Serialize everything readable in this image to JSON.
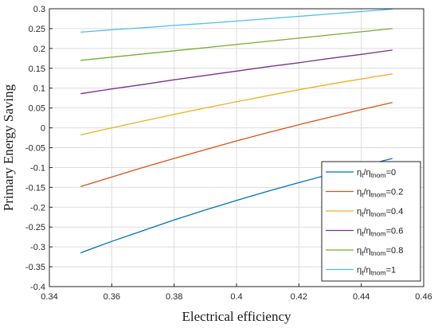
{
  "chart_data": {
    "type": "line",
    "xlabel": "Electrical efficiency",
    "ylabel": "Primary Energy Saving",
    "xlim": [
      0.34,
      0.46
    ],
    "ylim": [
      -0.4,
      0.3
    ],
    "x_ticks": [
      0.34,
      0.36,
      0.38,
      0.4,
      0.42,
      0.44,
      0.46
    ],
    "x_tick_labels": [
      "0.34",
      "0.36",
      "0.38",
      "0.4",
      "0.42",
      "0.44",
      "0.46"
    ],
    "y_ticks": [
      -0.4,
      -0.35,
      -0.3,
      -0.25,
      -0.2,
      -0.15,
      -0.1,
      -0.05,
      0,
      0.05,
      0.1,
      0.15,
      0.2,
      0.25,
      0.3
    ],
    "y_tick_labels": [
      "-0.4",
      "-0.35",
      "-0.3",
      "-0.25",
      "-0.2",
      "-0.15",
      "-0.1",
      "-0.05",
      "0",
      "0.05",
      "0.1",
      "0.15",
      "0.2",
      "0.25",
      "0.3"
    ],
    "grid": true,
    "legend_position": "bottom-right",
    "series": [
      {
        "name": "ηt/ηtnom=0",
        "label_parts": [
          "η",
          "t",
          "/η",
          "tnom",
          "=0"
        ],
        "color": "#0072BD",
        "x": [
          0.35,
          0.36,
          0.37,
          0.38,
          0.39,
          0.4,
          0.41,
          0.42,
          0.43,
          0.44,
          0.45
        ],
        "y": [
          -0.315,
          -0.286,
          -0.259,
          -0.232,
          -0.207,
          -0.183,
          -0.16,
          -0.138,
          -0.117,
          -0.097,
          -0.077
        ]
      },
      {
        "name": "ηt/ηtnom=0.2",
        "label_parts": [
          "η",
          "t",
          "/η",
          "tnom",
          "=0.2"
        ],
        "color": "#D95319",
        "x": [
          0.35,
          0.36,
          0.37,
          0.38,
          0.39,
          0.4,
          0.41,
          0.42,
          0.43,
          0.44,
          0.45
        ],
        "y": [
          -0.148,
          -0.124,
          -0.1,
          -0.077,
          -0.055,
          -0.033,
          -0.012,
          0.008,
          0.027,
          0.046,
          0.064
        ]
      },
      {
        "name": "ηt/ηtnom=0.4",
        "label_parts": [
          "η",
          "t",
          "/η",
          "tnom",
          "=0.4"
        ],
        "color": "#EDB120",
        "x": [
          0.35,
          0.36,
          0.37,
          0.38,
          0.39,
          0.4,
          0.41,
          0.42,
          0.43,
          0.44,
          0.45
        ],
        "y": [
          -0.018,
          0.0,
          0.017,
          0.034,
          0.05,
          0.066,
          0.081,
          0.096,
          0.11,
          0.123,
          0.136
        ]
      },
      {
        "name": "ηt/ηtnom=0.6",
        "label_parts": [
          "η",
          "t",
          "/η",
          "tnom",
          "=0.6"
        ],
        "color": "#7E2F8E",
        "x": [
          0.35,
          0.36,
          0.37,
          0.38,
          0.39,
          0.4,
          0.41,
          0.42,
          0.43,
          0.44,
          0.45
        ],
        "y": [
          0.086,
          0.098,
          0.109,
          0.121,
          0.132,
          0.143,
          0.154,
          0.164,
          0.175,
          0.185,
          0.196
        ]
      },
      {
        "name": "ηt/ηtnom=0.8",
        "label_parts": [
          "η",
          "t",
          "/η",
          "tnom",
          "=0.8"
        ],
        "color": "#77AC30",
        "x": [
          0.35,
          0.36,
          0.37,
          0.38,
          0.39,
          0.4,
          0.41,
          0.42,
          0.43,
          0.44,
          0.45
        ],
        "y": [
          0.17,
          0.178,
          0.186,
          0.194,
          0.202,
          0.21,
          0.218,
          0.226,
          0.234,
          0.242,
          0.25
        ]
      },
      {
        "name": "ηt/ηtnom=1",
        "label_parts": [
          "η",
          "t",
          "/η",
          "tnom",
          "=1"
        ],
        "color": "#4DBEEE",
        "x": [
          0.35,
          0.36,
          0.37,
          0.38,
          0.39,
          0.4,
          0.41,
          0.42,
          0.43,
          0.44,
          0.45
        ],
        "y": [
          0.241,
          0.247,
          0.252,
          0.258,
          0.263,
          0.269,
          0.275,
          0.281,
          0.287,
          0.293,
          0.299
        ]
      }
    ]
  }
}
